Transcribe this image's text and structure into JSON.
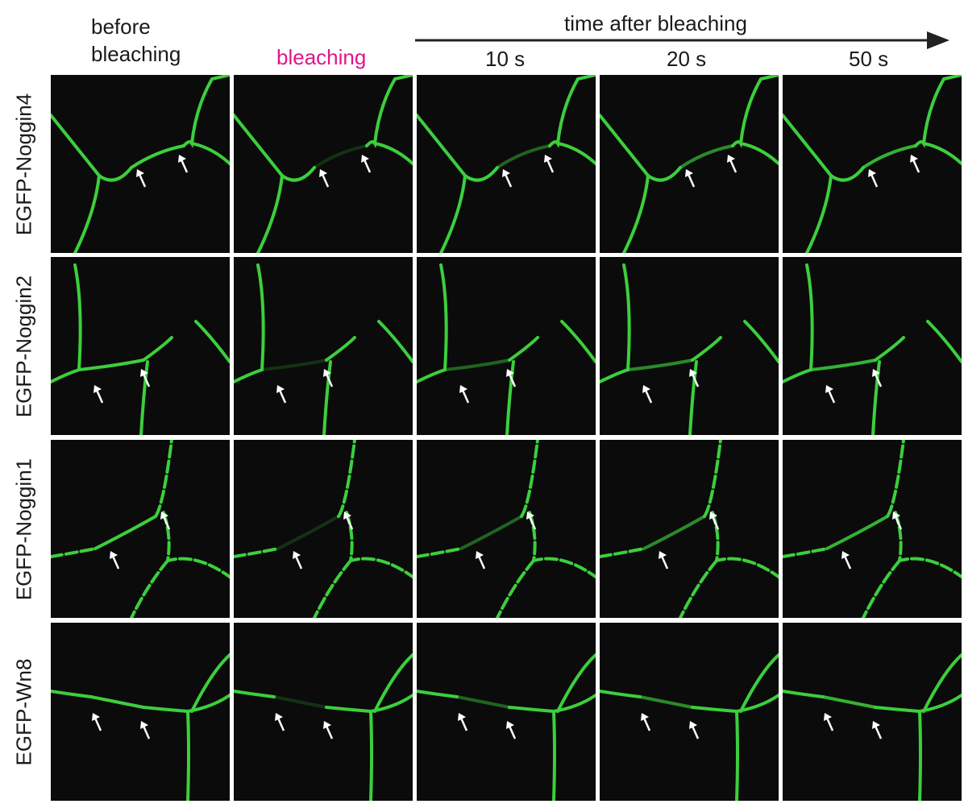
{
  "time_axis_label": "time after bleaching",
  "columns": [
    "before bleaching",
    "bleaching",
    "10 s",
    "20 s",
    "50 s"
  ],
  "rows": [
    "EGFP-Noggin4",
    "EGFP-Noggin2",
    "EGFP-Noggin1",
    "EGFP-Wn8"
  ]
}
